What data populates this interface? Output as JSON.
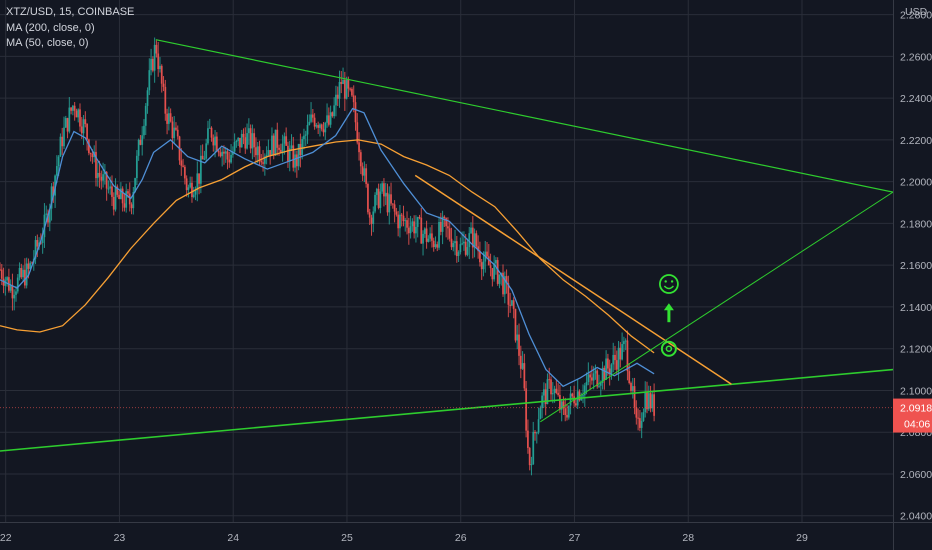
{
  "legend": {
    "symbol": "XTZ/USD, 15, COINBASE",
    "ma1": "MA (200, close, 0)",
    "ma2": "MA (50, close, 0)"
  },
  "price_axis": {
    "currency": "USD",
    "last_price": "2.0918",
    "countdown": "04:06"
  },
  "colors": {
    "background": "#131722",
    "grid": "#2a2e39",
    "up_candle": "#26a69a",
    "down_candle": "#ef5350",
    "ma200": "#f7a034",
    "ma50": "#4f8fd6",
    "trend_green": "#2ecc2e",
    "trend_orange": "#f7a034",
    "price_label": "#ef5350",
    "annotation": "#33e233"
  },
  "icons": [
    "smiley-icon",
    "arrow-up-icon",
    "target-circle-icon"
  ],
  "chart_data": {
    "type": "candlestick",
    "x_labels": [
      "22",
      "23",
      "24",
      "25",
      "26",
      "27",
      "28",
      "29"
    ],
    "y_ticks": [
      "2.2800",
      "2.2600",
      "2.2400",
      "2.2200",
      "2.2000",
      "2.1800",
      "2.1600",
      "2.1400",
      "2.1200",
      "2.1000",
      "2.0800",
      "2.0600",
      "2.0400"
    ],
    "ylim": [
      2.037,
      2.287
    ],
    "xlim": [
      21.95,
      29.8
    ],
    "grid": true,
    "ma200": {
      "name": "MA (200, close, 0)",
      "points": [
        [
          21.95,
          2.131
        ],
        [
          22.1,
          2.129
        ],
        [
          22.3,
          2.128
        ],
        [
          22.5,
          2.131
        ],
        [
          22.7,
          2.141
        ],
        [
          22.9,
          2.154
        ],
        [
          23.1,
          2.168
        ],
        [
          23.3,
          2.18
        ],
        [
          23.5,
          2.191
        ],
        [
          23.7,
          2.197
        ],
        [
          23.9,
          2.201
        ],
        [
          24.1,
          2.207
        ],
        [
          24.3,
          2.212
        ],
        [
          24.5,
          2.215
        ],
        [
          24.7,
          2.217
        ],
        [
          24.9,
          2.219
        ],
        [
          25.1,
          2.22
        ],
        [
          25.3,
          2.218
        ],
        [
          25.5,
          2.212
        ],
        [
          25.7,
          2.208
        ],
        [
          25.9,
          2.203
        ],
        [
          26.1,
          2.195
        ],
        [
          26.3,
          2.188
        ],
        [
          26.5,
          2.176
        ],
        [
          26.7,
          2.163
        ],
        [
          26.9,
          2.153
        ],
        [
          27.1,
          2.145
        ],
        [
          27.3,
          2.136
        ],
        [
          27.5,
          2.126
        ],
        [
          27.7,
          2.118
        ]
      ]
    },
    "ma50": {
      "name": "MA (50, close, 0)",
      "points": [
        [
          21.95,
          2.153
        ],
        [
          22.1,
          2.149
        ],
        [
          22.2,
          2.155
        ],
        [
          22.3,
          2.17
        ],
        [
          22.4,
          2.189
        ],
        [
          22.5,
          2.212
        ],
        [
          22.6,
          2.224
        ],
        [
          22.7,
          2.221
        ],
        [
          22.8,
          2.211
        ],
        [
          22.95,
          2.198
        ],
        [
          23.1,
          2.192
        ],
        [
          23.2,
          2.201
        ],
        [
          23.3,
          2.214
        ],
        [
          23.45,
          2.22
        ],
        [
          23.6,
          2.212
        ],
        [
          23.75,
          2.209
        ],
        [
          23.9,
          2.217
        ],
        [
          24.1,
          2.211
        ],
        [
          24.3,
          2.206
        ],
        [
          24.5,
          2.21
        ],
        [
          24.7,
          2.214
        ],
        [
          24.9,
          2.222
        ],
        [
          25.05,
          2.235
        ],
        [
          25.15,
          2.233
        ],
        [
          25.3,
          2.215
        ],
        [
          25.5,
          2.199
        ],
        [
          25.7,
          2.185
        ],
        [
          25.9,
          2.181
        ],
        [
          26.1,
          2.17
        ],
        [
          26.3,
          2.16
        ],
        [
          26.45,
          2.148
        ],
        [
          26.6,
          2.127
        ],
        [
          26.75,
          2.11
        ],
        [
          26.9,
          2.102
        ],
        [
          27.05,
          2.106
        ],
        [
          27.2,
          2.111
        ],
        [
          27.35,
          2.107
        ],
        [
          27.55,
          2.113
        ],
        [
          27.7,
          2.108
        ]
      ]
    },
    "price_path": {
      "points": [
        [
          21.95,
          2.158
        ],
        [
          22.05,
          2.149
        ],
        [
          22.2,
          2.157
        ],
        [
          22.35,
          2.18
        ],
        [
          22.5,
          2.222
        ],
        [
          22.6,
          2.238
        ],
        [
          22.7,
          2.225
        ],
        [
          22.8,
          2.205
        ],
        [
          22.95,
          2.192
        ],
        [
          23.1,
          2.19
        ],
        [
          23.25,
          2.245
        ],
        [
          23.32,
          2.266
        ],
        [
          23.4,
          2.235
        ],
        [
          23.5,
          2.22
        ],
        [
          23.6,
          2.196
        ],
        [
          23.7,
          2.203
        ],
        [
          23.8,
          2.225
        ],
        [
          23.95,
          2.211
        ],
        [
          24.1,
          2.222
        ],
        [
          24.25,
          2.214
        ],
        [
          24.4,
          2.22
        ],
        [
          24.55,
          2.209
        ],
        [
          24.7,
          2.231
        ],
        [
          24.85,
          2.227
        ],
        [
          24.95,
          2.248
        ],
        [
          25.05,
          2.237
        ],
        [
          25.12,
          2.214
        ],
        [
          25.2,
          2.184
        ],
        [
          25.3,
          2.195
        ],
        [
          25.45,
          2.182
        ],
        [
          25.6,
          2.179
        ],
        [
          25.75,
          2.171
        ],
        [
          25.85,
          2.178
        ],
        [
          26.0,
          2.168
        ],
        [
          26.1,
          2.174
        ],
        [
          26.2,
          2.162
        ],
        [
          26.35,
          2.155
        ],
        [
          26.45,
          2.139
        ],
        [
          26.55,
          2.106
        ],
        [
          26.6,
          2.064
        ],
        [
          26.7,
          2.094
        ],
        [
          26.8,
          2.103
        ],
        [
          26.9,
          2.088
        ],
        [
          27.0,
          2.098
        ],
        [
          27.15,
          2.105
        ],
        [
          27.3,
          2.111
        ],
        [
          27.45,
          2.121
        ],
        [
          27.5,
          2.102
        ],
        [
          27.55,
          2.079
        ],
        [
          27.62,
          2.098
        ],
        [
          27.7,
          2.092
        ]
      ]
    },
    "annotations": {
      "upper_trendline": {
        "from": [
          23.32,
          2.268
        ],
        "to": [
          29.8,
          2.195
        ]
      },
      "lower_trendline": {
        "from": [
          21.95,
          2.071
        ],
        "to": [
          29.8,
          2.11
        ]
      },
      "orange_trendline": {
        "from": [
          25.6,
          2.203
        ],
        "to": [
          28.38,
          2.103
        ]
      },
      "rising_trendline": {
        "from": [
          26.7,
          2.085
        ],
        "to": [
          29.8,
          2.195
        ]
      },
      "target": [
        27.83,
        2.12
      ],
      "arrow": [
        27.83,
        2.137
      ],
      "smiley": [
        27.83,
        2.151
      ]
    }
  }
}
